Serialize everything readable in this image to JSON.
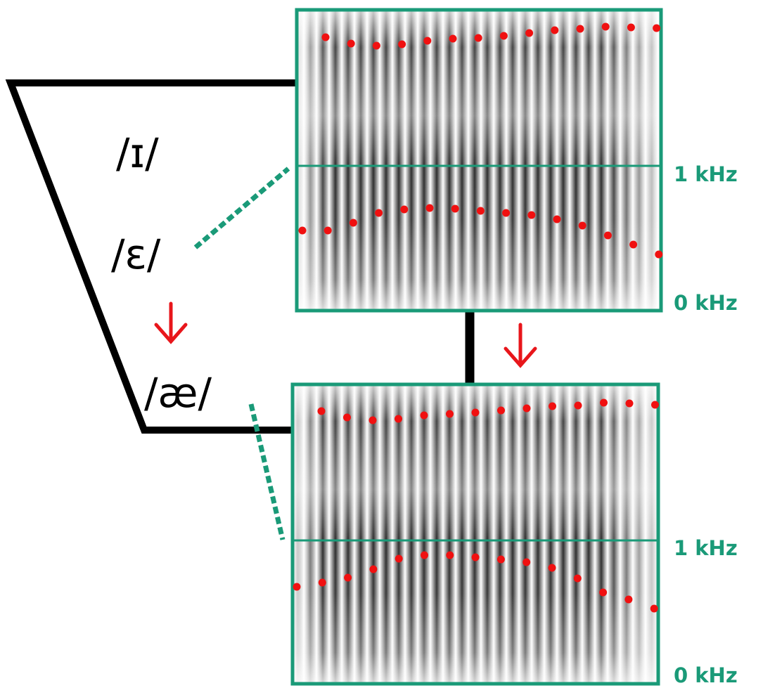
{
  "vowels": [
    "/ɪ/",
    "/ɛ/",
    "/æ/"
  ],
  "top_panel": {
    "upper_label": "1 kHz",
    "lower_label": "0 kHz"
  },
  "bottom_panel": {
    "upper_label": "1 kHz",
    "lower_label": "0 kHz"
  }
}
